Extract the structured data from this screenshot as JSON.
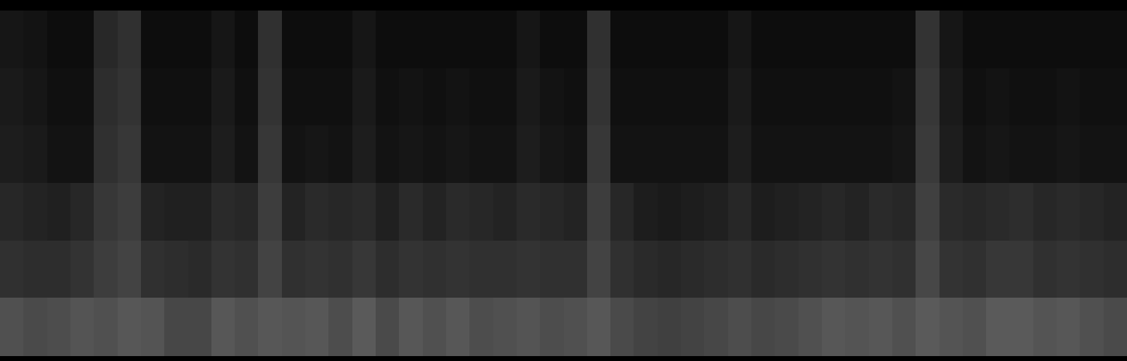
{
  "chart_data": {
    "type": "heatmap",
    "tick_labels": false,
    "color": "#ffffff",
    "color_range": [
      0,
      100
    ],
    "cells": [
      [
        14,
        12,
        8,
        8,
        25,
        30,
        8,
        8,
        8,
        14,
        8,
        30,
        8,
        8,
        8,
        14,
        8,
        8,
        8,
        8,
        8,
        8,
        14,
        8,
        8,
        30,
        8,
        8,
        8,
        8,
        8,
        14,
        8,
        8,
        8,
        8,
        8,
        8,
        8,
        32,
        14,
        8,
        8,
        8,
        8,
        8,
        8,
        8
      ],
      [
        16,
        14,
        10,
        10,
        28,
        32,
        10,
        10,
        10,
        16,
        10,
        32,
        10,
        10,
        10,
        16,
        10,
        12,
        10,
        12,
        10,
        10,
        16,
        12,
        10,
        32,
        10,
        10,
        10,
        10,
        10,
        16,
        10,
        10,
        10,
        10,
        10,
        10,
        12,
        34,
        16,
        10,
        12,
        10,
        10,
        12,
        10,
        10
      ],
      [
        18,
        16,
        12,
        12,
        30,
        34,
        12,
        12,
        12,
        18,
        12,
        34,
        12,
        14,
        12,
        18,
        12,
        14,
        12,
        14,
        12,
        12,
        18,
        14,
        12,
        34,
        12,
        12,
        12,
        12,
        12,
        18,
        12,
        12,
        12,
        12,
        12,
        12,
        14,
        36,
        18,
        12,
        14,
        12,
        12,
        14,
        12,
        12
      ],
      [
        24,
        22,
        20,
        24,
        34,
        38,
        22,
        20,
        20,
        26,
        24,
        38,
        22,
        26,
        24,
        26,
        20,
        26,
        22,
        26,
        24,
        22,
        26,
        24,
        22,
        38,
        24,
        18,
        16,
        18,
        20,
        24,
        18,
        20,
        22,
        24,
        22,
        26,
        24,
        40,
        26,
        24,
        26,
        28,
        24,
        26,
        24,
        22
      ],
      [
        30,
        28,
        28,
        32,
        38,
        42,
        30,
        28,
        26,
        32,
        30,
        42,
        30,
        32,
        30,
        34,
        28,
        32,
        30,
        32,
        30,
        30,
        32,
        30,
        30,
        42,
        30,
        26,
        24,
        26,
        28,
        30,
        26,
        28,
        30,
        32,
        30,
        32,
        30,
        44,
        32,
        30,
        34,
        34,
        30,
        32,
        30,
        28
      ],
      [
        50,
        46,
        48,
        52,
        50,
        54,
        52,
        44,
        44,
        54,
        50,
        54,
        52,
        54,
        48,
        56,
        46,
        54,
        50,
        54,
        48,
        50,
        52,
        48,
        50,
        54,
        46,
        42,
        40,
        42,
        44,
        48,
        44,
        46,
        50,
        54,
        52,
        54,
        50,
        56,
        52,
        50,
        56,
        56,
        52,
        54,
        50,
        46
      ]
    ]
  }
}
